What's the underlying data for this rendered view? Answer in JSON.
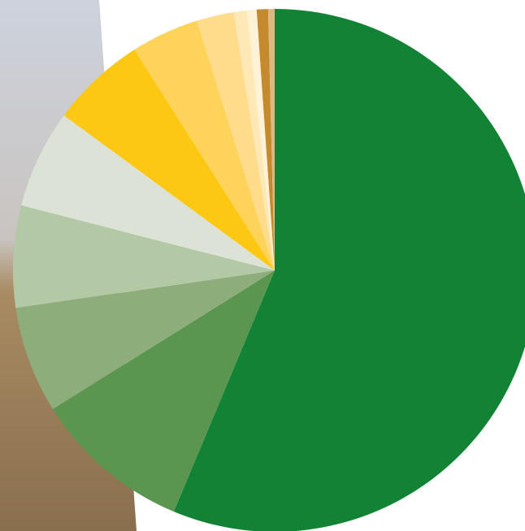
{
  "chart_data": {
    "type": "pie",
    "values": [
      56.3,
      9.8,
      6.6,
      6.3,
      6.1,
      5.9,
      4.2,
      2.3,
      0.8,
      0.6,
      0.7,
      0.4
    ],
    "colors": [
      "#128335",
      "#5b9651",
      "#8dae7a",
      "#b3c9a5",
      "#dce3d6",
      "#fdc813",
      "#fdd35a",
      "#fedc8c",
      "#fee8b5",
      "#fff2d6",
      "#c58a2e",
      "#ddb883"
    ]
  }
}
